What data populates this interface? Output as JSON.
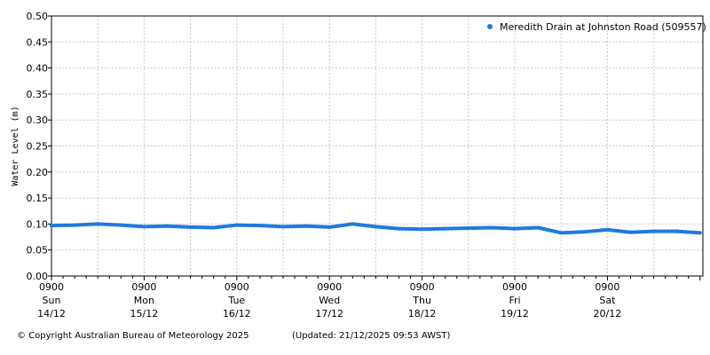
{
  "chart_data": {
    "type": "scatter",
    "title": "",
    "ylabel": "Water Level (m)",
    "xlabel": "",
    "ylim": [
      0,
      0.5
    ],
    "yticks": [
      "0.00",
      "0.05",
      "0.10",
      "0.15",
      "0.20",
      "0.25",
      "0.30",
      "0.35",
      "0.40",
      "0.45",
      "0.50"
    ],
    "xlim_hours": [
      0,
      168
    ],
    "xticks": [
      {
        "time": "0900",
        "day": "Sun",
        "date": "14/12"
      },
      {
        "time": "0900",
        "day": "Mon",
        "date": "15/12"
      },
      {
        "time": "0900",
        "day": "Tue",
        "date": "16/12"
      },
      {
        "time": "0900",
        "day": "Wed",
        "date": "17/12"
      },
      {
        "time": "0900",
        "day": "Thu",
        "date": "18/12"
      },
      {
        "time": "0900",
        "day": "Fri",
        "date": "19/12"
      },
      {
        "time": "0900",
        "day": "Sat",
        "date": "20/12"
      }
    ],
    "grid": true,
    "legend_position": "top-right",
    "series": [
      {
        "name": "Meredith Drain at Johnston Road (509557)",
        "color": "#1f7ae0",
        "x_hours": [
          0,
          6,
          12,
          18,
          24,
          30,
          36,
          42,
          48,
          54,
          60,
          66,
          72,
          78,
          84,
          90,
          96,
          102,
          108,
          114,
          120,
          126,
          132,
          138,
          144,
          150,
          156,
          162,
          168
        ],
        "values": [
          0.097,
          0.098,
          0.1,
          0.098,
          0.095,
          0.096,
          0.094,
          0.093,
          0.098,
          0.097,
          0.095,
          0.096,
          0.094,
          0.1,
          0.095,
          0.091,
          0.09,
          0.091,
          0.092,
          0.093,
          0.091,
          0.093,
          0.083,
          0.085,
          0.089,
          0.084,
          0.086,
          0.086,
          0.083
        ]
      }
    ]
  },
  "footer": {
    "copyright": "© Copyright Australian Bureau of Meteorology 2025",
    "updated": "(Updated: 21/12/2025 09:53 AWST)"
  }
}
